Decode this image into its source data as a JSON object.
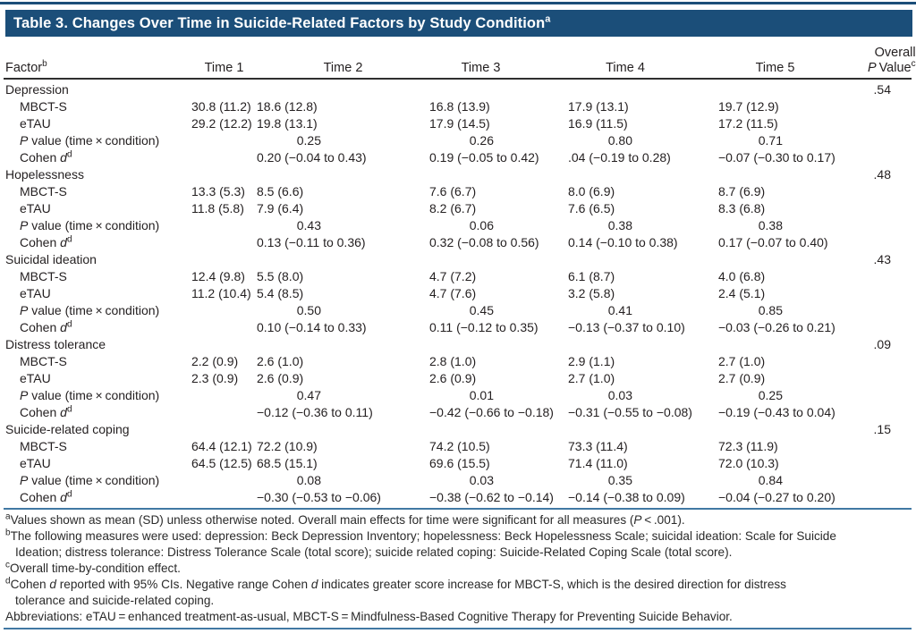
{
  "colors": {
    "accent_blue": "#1b4e79",
    "rule_black": "#2e2e2e",
    "rule_steel_blue": "#4178a3",
    "text": "#231f20",
    "title_text": "#ffffff"
  },
  "title": {
    "text": "Table 3. Changes Over Time in Suicide-Related Factors by Study Condition",
    "sup": "a"
  },
  "columns": {
    "factor": "Factor",
    "factor_sup": "b",
    "times": [
      "Time 1",
      "Time 2",
      "Time 3",
      "Time 4",
      "Time 5"
    ],
    "overall": {
      "line1": "Overall",
      "p": "P",
      "value": " Value",
      "sup": "c"
    }
  },
  "row_labels": {
    "mbcts": "MBCT-S",
    "etau": "eTAU",
    "pvalue": [
      {
        "i": "P"
      },
      {
        "t": " value (time × condition)"
      }
    ],
    "cohen": [
      {
        "t": "Cohen "
      },
      {
        "i": "d"
      },
      {
        "sup": "d"
      }
    ]
  },
  "sections": [
    {
      "factor": "Depression",
      "overall_p": ".54",
      "mbcts": [
        "30.8 (11.2)",
        "18.6 (12.8)",
        "16.8 (13.9)",
        "17.9 (13.1)",
        "19.7 (12.9)"
      ],
      "etau": [
        "29.2 (12.2)",
        "19.8 (13.1)",
        "17.9 (14.5)",
        "16.9 (11.5)",
        "17.2 (11.5)"
      ],
      "pvalues": [
        "0.25",
        "0.26",
        "0.80",
        "0.71"
      ],
      "cohen_d": [
        "0.20 (−0.04 to 0.43)",
        "0.19 (−0.05 to 0.42)",
        ".04 (−0.19 to 0.28)",
        "−0.07 (−0.30 to 0.17)"
      ]
    },
    {
      "factor": "Hopelessness",
      "overall_p": ".48",
      "mbcts": [
        "13.3 (5.3)",
        "8.5 (6.6)",
        "7.6 (6.7)",
        "8.0 (6.9)",
        "8.7 (6.9)"
      ],
      "etau": [
        "11.8 (5.8)",
        "7.9 (6.4)",
        "8.2 (6.7)",
        "7.6 (6.5)",
        "8.3 (6.8)"
      ],
      "pvalues": [
        "0.43",
        "0.06",
        "0.38",
        "0.38"
      ],
      "cohen_d": [
        "0.13 (−0.11 to 0.36)",
        "0.32 (−0.08 to 0.56)",
        "0.14 (−0.10 to 0.38)",
        "0.17 (−0.07 to 0.40)"
      ]
    },
    {
      "factor": "Suicidal ideation",
      "overall_p": ".43",
      "mbcts": [
        "12.4 (9.8)",
        "5.5 (8.0)",
        "4.7 (7.2)",
        "6.1 (8.7)",
        "4.0 (6.8)"
      ],
      "etau": [
        "11.2 (10.4)",
        "5.4 (8.5)",
        "4.7 (7.6)",
        "3.2 (5.8)",
        "2.4 (5.1)"
      ],
      "pvalues": [
        "0.50",
        "0.45",
        "0.41",
        "0.85"
      ],
      "cohen_d": [
        "0.10 (−0.14 to 0.33)",
        "0.11 (−0.12 to 0.35)",
        "−0.13 (−0.37 to 0.10)",
        "−0.03 (−0.26 to 0.21)"
      ]
    },
    {
      "factor": "Distress tolerance",
      "overall_p": ".09",
      "mbcts": [
        "2.2 (0.9)",
        "2.6 (1.0)",
        "2.8 (1.0)",
        "2.9 (1.1)",
        "2.7 (1.0)"
      ],
      "etau": [
        "2.3 (0.9)",
        "2.6 (0.9)",
        "2.6 (0.9)",
        "2.7 (1.0)",
        "2.7 (0.9)"
      ],
      "pvalues": [
        "0.47",
        "0.01",
        "0.03",
        "0.25"
      ],
      "cohen_d": [
        "−0.12 (−0.36 to 0.11)",
        "−0.42 (−0.66 to −0.18)",
        "−0.31 (−0.55 to −0.08)",
        "−0.19 (−0.43 to 0.04)"
      ]
    },
    {
      "factor": "Suicide-related coping",
      "overall_p": ".15",
      "mbcts": [
        "64.4 (12.1)",
        "72.2 (10.9)",
        "74.2 (10.5)",
        "73.3 (11.4)",
        "72.3 (11.9)"
      ],
      "etau": [
        "64.5 (12.5)",
        "68.5 (15.1)",
        "69.6 (15.5)",
        "71.4 (11.0)",
        "72.0 (10.3)"
      ],
      "pvalues": [
        "0.08",
        "0.03",
        "0.35",
        "0.84"
      ],
      "cohen_d": [
        "−0.30 (−0.53 to −0.06)",
        "−0.38 (−0.62 to −0.14)",
        "−0.14 (−0.38 to 0.09)",
        "−0.04 (−0.27 to 0.20)"
      ]
    }
  ],
  "footnotes": [
    {
      "sup": "a",
      "lines": [
        [
          {
            "t": "Values shown as mean (SD) unless otherwise noted. Overall main effects for time were significant for all measures ("
          },
          {
            "i": "P"
          },
          {
            "t": " < .001)."
          }
        ]
      ]
    },
    {
      "sup": "b",
      "lines": [
        [
          {
            "t": "The following measures were used: depression: Beck Depression Inventory; hopelessness: Beck Hopelessness Scale; suicidal ideation: Scale for Suicide"
          }
        ],
        [
          {
            "t": "Ideation; distress tolerance: Distress Tolerance Scale (total score); suicide related coping: Suicide-Related Coping Scale (total score)."
          }
        ]
      ]
    },
    {
      "sup": "c",
      "lines": [
        [
          {
            "t": "Overall time-by-condition effect."
          }
        ]
      ]
    },
    {
      "sup": "d",
      "lines": [
        [
          {
            "t": "Cohen "
          },
          {
            "i": "d"
          },
          {
            "t": " reported with 95% CIs. Negative range Cohen "
          },
          {
            "i": "d"
          },
          {
            "t": " indicates greater score increase for MBCT-S, which is the desired direction for distress"
          }
        ],
        [
          {
            "t": "tolerance and suicide-related coping."
          }
        ]
      ]
    },
    {
      "sup": "",
      "lines": [
        [
          {
            "t": "Abbreviations: eTAU = enhanced treatment-as-usual, MBCT-S = Mindfulness-Based Cognitive Therapy for Preventing Suicide Behavior."
          }
        ]
      ]
    }
  ]
}
